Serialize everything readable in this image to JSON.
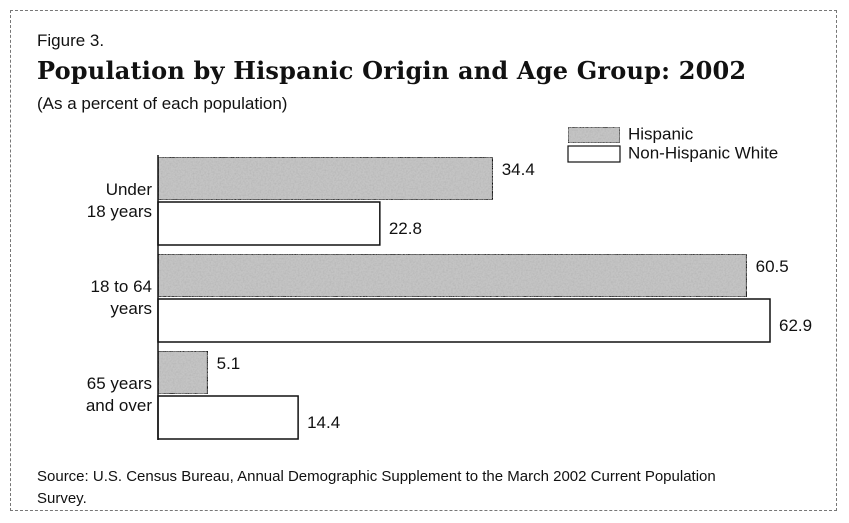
{
  "chart_data": {
    "type": "bar",
    "orientation": "horizontal",
    "figure_label": "Figure 3.",
    "title": "Population by Hispanic Origin and Age Group:  2002",
    "subtitle": "(As a percent of each population)",
    "categories": [
      "Under 18 years",
      "18 to 64 years",
      "65 years and over"
    ],
    "series": [
      {
        "name": "Hispanic",
        "color": "#c4c4c4",
        "values": [
          34.4,
          60.5,
          5.1
        ]
      },
      {
        "name": "Non-Hispanic White",
        "color": "#ffffff",
        "values": [
          22.8,
          62.9,
          14.4
        ]
      }
    ],
    "legend": "upper right",
    "source": "Source: U.S. Census Bureau, Annual Demographic Supplement to the March 2002 Current Population Survey."
  }
}
